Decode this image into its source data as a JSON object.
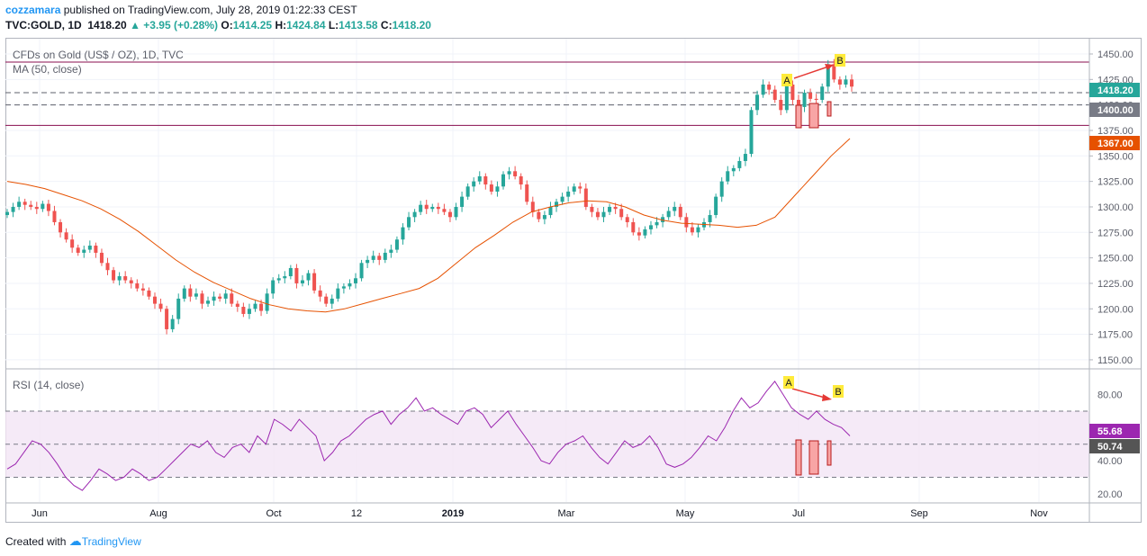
{
  "header": {
    "author": "cozzamara",
    "published": "published on TradingView.com, July 28, 2019 01:22:33 CEST",
    "symbol": "TVC:GOLD, 1D",
    "last": "1418.20",
    "change": "▲ +3.95 (+0.28%)",
    "o_label": "O:",
    "o": "1414.25",
    "h_label": "H:",
    "h": "1424.84",
    "l_label": "L:",
    "l": "1413.58",
    "c_label": "C:",
    "c": "1418.20"
  },
  "main_legend": {
    "title": "CFDs on Gold (US$ / OZ), 1D, TVC",
    "ma": "MA (50, close)"
  },
  "rsi_legend": "RSI (14, close)",
  "annotations": {
    "a": "A",
    "b": "B"
  },
  "price_badges": {
    "last": "1418.20",
    "level": "1400.00",
    "ma": "1367.00"
  },
  "rsi_badges": {
    "rsi": "55.68",
    "ma": "50.74"
  },
  "footer": {
    "created": "Created with",
    "brand": "TradingView"
  },
  "colors": {
    "up": "#26a69a",
    "down": "#ef5350",
    "ma": "#e65100",
    "rsi": "#9c27b0",
    "rsi_band": "#f3e5f5",
    "level_line": "#880e4f",
    "arrow": "#e53935",
    "label_bg": "#ffeb3b",
    "badge_last": "#26a69a",
    "badge_level": "#787b86",
    "badge_ma": "#e65100"
  },
  "chart_data": {
    "type": "candlestick",
    "title": "CFDs on Gold (US$ / OZ), 1D, TVC",
    "x_ticks": [
      "Jun",
      "Aug",
      "Oct",
      "12",
      "2019",
      "Mar",
      "May",
      "Jul",
      "Sep",
      "Nov"
    ],
    "y_ticks": [
      1150,
      1175,
      1200,
      1225,
      1250,
      1275,
      1300,
      1325,
      1350,
      1375,
      1400,
      1425,
      1450
    ],
    "ylim": [
      1142,
      1465
    ],
    "horizontal_levels": [
      1442,
      1412,
      1400,
      1380
    ],
    "series": [
      {
        "name": "Gold daily close (approx.)",
        "values": [
          1295,
          1300,
          1305,
          1302,
          1300,
          1298,
          1303,
          1296,
          1285,
          1275,
          1268,
          1260,
          1255,
          1258,
          1262,
          1255,
          1245,
          1238,
          1228,
          1232,
          1228,
          1225,
          1220,
          1218,
          1212,
          1205,
          1200,
          1180,
          1190,
          1210,
          1220,
          1212,
          1215,
          1205,
          1208,
          1212,
          1210,
          1215,
          1205,
          1202,
          1195,
          1200,
          1205,
          1198,
          1215,
          1228,
          1230,
          1232,
          1240,
          1225,
          1228,
          1235,
          1218,
          1212,
          1205,
          1210,
          1220,
          1222,
          1225,
          1230,
          1245,
          1248,
          1252,
          1248,
          1255,
          1258,
          1268,
          1280,
          1290,
          1295,
          1302,
          1298,
          1300,
          1298,
          1295,
          1290,
          1300,
          1310,
          1320,
          1325,
          1330,
          1322,
          1315,
          1320,
          1332,
          1335,
          1330,
          1322,
          1305,
          1295,
          1288,
          1292,
          1300,
          1305,
          1310,
          1315,
          1320,
          1318,
          1300,
          1295,
          1290,
          1295,
          1300,
          1298,
          1290,
          1285,
          1275,
          1272,
          1278,
          1282,
          1285,
          1290,
          1296,
          1300,
          1290,
          1280,
          1275,
          1280,
          1285,
          1292,
          1310,
          1325,
          1335,
          1338,
          1345,
          1352,
          1395,
          1410,
          1420,
          1415,
          1405,
          1395,
          1420,
          1405,
          1398,
          1412,
          1406,
          1405,
          1418,
          1440,
          1425,
          1420,
          1425,
          1418
        ]
      },
      {
        "name": "MA (50, close)",
        "values": [
          1325,
          1322,
          1318,
          1312,
          1306,
          1298,
          1288,
          1276,
          1262,
          1248,
          1236,
          1226,
          1218,
          1210,
          1204,
          1200,
          1198,
          1197,
          1200,
          1205,
          1210,
          1215,
          1220,
          1230,
          1245,
          1260,
          1272,
          1285,
          1295,
          1300,
          1304,
          1306,
          1305,
          1300,
          1292,
          1287,
          1284,
          1283,
          1282,
          1280,
          1282,
          1290,
          1310,
          1330,
          1350,
          1367
        ]
      },
      {
        "name": "RSI (14, close)",
        "values": [
          35,
          38,
          45,
          52,
          50,
          45,
          38,
          30,
          25,
          22,
          28,
          35,
          32,
          28,
          30,
          35,
          32,
          28,
          30,
          35,
          40,
          45,
          50,
          48,
          52,
          45,
          42,
          48,
          50,
          45,
          55,
          50,
          65,
          62,
          58,
          65,
          60,
          55,
          40,
          45,
          52,
          55,
          60,
          65,
          68,
          70,
          62,
          68,
          72,
          78,
          70,
          72,
          68,
          65,
          62,
          70,
          72,
          68,
          60,
          65,
          70,
          62,
          55,
          48,
          40,
          38,
          45,
          50,
          52,
          55,
          48,
          42,
          38,
          45,
          52,
          48,
          50,
          55,
          48,
          38,
          36,
          38,
          42,
          48,
          55,
          52,
          60,
          70,
          78,
          72,
          75,
          82,
          88,
          80,
          72,
          68,
          65,
          70,
          65,
          62,
          60,
          55
        ]
      }
    ],
    "rsi_ticks": [
      20,
      40,
      60,
      80
    ],
    "rsi_levels": [
      70,
      50,
      30
    ],
    "rsi_ylim": [
      15,
      95
    ]
  }
}
